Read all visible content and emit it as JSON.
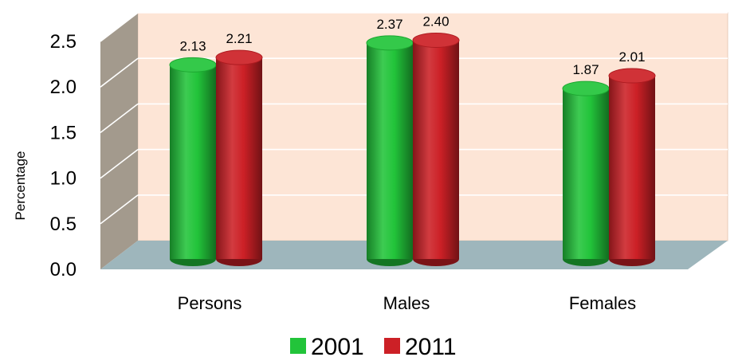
{
  "chart_data": {
    "type": "bar",
    "style": "3d-cylinder",
    "categories": [
      "Persons",
      "Males",
      "Females"
    ],
    "series": [
      {
        "name": "2001",
        "values": [
          2.13,
          2.37,
          1.87
        ],
        "color": "#22c43a"
      },
      {
        "name": "2011",
        "values": [
          2.21,
          2.4,
          2.01
        ],
        "color": "#cc2026"
      }
    ],
    "data_labels": [
      [
        "2.13",
        "2.37",
        "1.87"
      ],
      [
        "2.21",
        "2.40",
        "2.01"
      ]
    ],
    "ylabel": "Percentage",
    "xlabel": "",
    "ylim": [
      0,
      2.5
    ],
    "yticks": [
      "0.0",
      "0.5",
      "1.0",
      "1.5",
      "2.0",
      "2.5"
    ],
    "grid": true,
    "legend_position": "bottom",
    "colors": {
      "back_wall": "#fde5d6",
      "side_wall": "#a39a8d",
      "floor": "#9eb6bc",
      "gridline": "#ffffff"
    }
  }
}
